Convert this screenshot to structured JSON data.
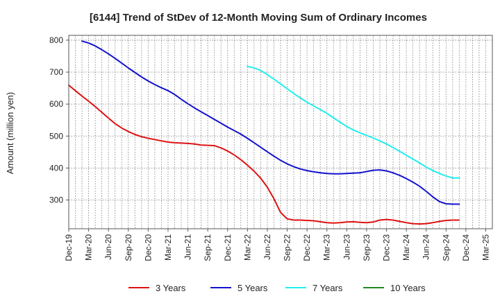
{
  "chart_data": {
    "type": "line",
    "title": "[6144]  Trend of StDev of 12-Month Moving Sum of Ordinary Incomes",
    "xlabel": "",
    "ylabel": "Amount (million yen)",
    "ylim": [
      210,
      815
    ],
    "yticks": [
      300,
      400,
      500,
      600,
      700,
      800
    ],
    "x_tick_labels": [
      "Dec-19",
      "Mar-20",
      "Jun-20",
      "Sep-20",
      "Dec-20",
      "Mar-21",
      "Jun-21",
      "Sep-21",
      "Dec-21",
      "Mar-22",
      "Jun-22",
      "Sep-22",
      "Dec-22",
      "Mar-23",
      "Jun-23",
      "Sep-23",
      "Dec-23",
      "Mar-24",
      "Jun-24",
      "Sep-24",
      "Dec-24",
      "Mar-25"
    ],
    "x_months": [
      "2019-12",
      "2020-01",
      "2020-02",
      "2020-03",
      "2020-04",
      "2020-05",
      "2020-06",
      "2020-07",
      "2020-08",
      "2020-09",
      "2020-10",
      "2020-11",
      "2020-12",
      "2021-01",
      "2021-02",
      "2021-03",
      "2021-04",
      "2021-05",
      "2021-06",
      "2021-07",
      "2021-08",
      "2021-09",
      "2021-10",
      "2021-11",
      "2021-12",
      "2022-01",
      "2022-02",
      "2022-03",
      "2022-04",
      "2022-05",
      "2022-06",
      "2022-07",
      "2022-08",
      "2022-09",
      "2022-10",
      "2022-11",
      "2022-12",
      "2023-01",
      "2023-02",
      "2023-03",
      "2023-04",
      "2023-05",
      "2023-06",
      "2023-07",
      "2023-08",
      "2023-09",
      "2023-10",
      "2023-11",
      "2023-12",
      "2024-01",
      "2024-02",
      "2024-03",
      "2024-04",
      "2024-05",
      "2024-06",
      "2024-07",
      "2024-08",
      "2024-09",
      "2024-10",
      "2024-11",
      "2024-12",
      "2025-01",
      "2025-02",
      "2025-03"
    ],
    "grid": true,
    "legend_position": "bottom",
    "series": [
      {
        "name": "3 Years",
        "color": "#dd1111",
        "values": [
          659,
          642,
          625,
          609,
          592,
          574,
          556,
          539,
          525,
          514,
          505,
          498,
          493,
          489,
          485,
          481,
          479,
          478,
          477,
          475,
          472,
          471,
          470,
          463,
          453,
          441,
          426,
          409,
          390,
          368,
          340,
          304,
          261,
          241,
          237,
          237,
          236,
          235,
          232,
          229,
          228,
          229,
          231,
          232,
          230,
          229,
          231,
          237,
          239,
          237,
          233,
          229,
          226,
          225,
          226,
          229,
          233,
          236,
          237,
          237,
          null,
          null,
          null,
          null
        ]
      },
      {
        "name": "5 Years",
        "color": "#1111cc",
        "values": [
          null,
          null,
          797,
          791,
          782,
          770,
          757,
          743,
          728,
          713,
          699,
          685,
          672,
          661,
          651,
          642,
          630,
          615,
          601,
          588,
          576,
          564,
          552,
          540,
          528,
          517,
          506,
          493,
          479,
          465,
          451,
          437,
          424,
          413,
          404,
          397,
          392,
          388,
          385,
          383,
          382,
          382,
          383,
          384,
          385,
          389,
          393,
          394,
          391,
          385,
          377,
          367,
          356,
          343,
          327,
          310,
          295,
          288,
          287,
          287,
          null,
          null,
          null,
          null
        ]
      },
      {
        "name": "7 Years",
        "color": "#22eeee",
        "values": [
          null,
          null,
          null,
          null,
          null,
          null,
          null,
          null,
          null,
          null,
          null,
          null,
          null,
          null,
          null,
          null,
          null,
          null,
          null,
          null,
          null,
          null,
          null,
          null,
          null,
          null,
          null,
          718,
          713,
          705,
          692,
          678,
          663,
          648,
          633,
          619,
          606,
          594,
          583,
          571,
          557,
          543,
          530,
          519,
          510,
          502,
          494,
          485,
          475,
          464,
          452,
          440,
          428,
          416,
          403,
          392,
          383,
          375,
          369,
          369,
          null,
          null,
          null,
          null
        ]
      },
      {
        "name": "10 Years",
        "color": "#228822",
        "values": []
      }
    ]
  }
}
